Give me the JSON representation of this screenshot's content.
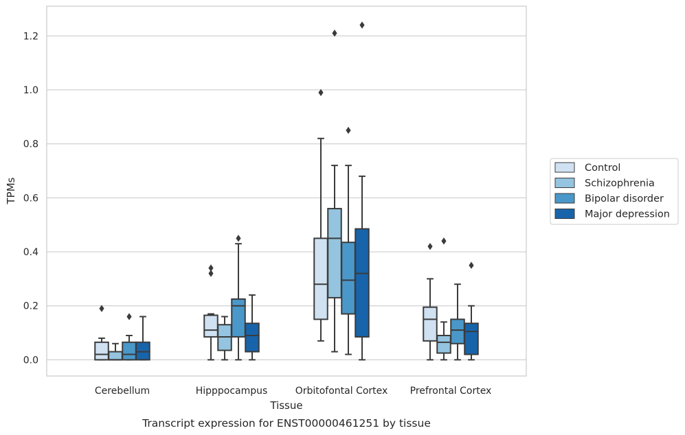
{
  "chart_data": {
    "type": "box",
    "title": "",
    "xlabel": "Tissue",
    "ylabel": "TPMs",
    "caption": "Transcript expression for ENST00000461251 by tissue",
    "ylim": [
      -0.06,
      1.31
    ],
    "yticks": [
      0.0,
      0.2,
      0.4,
      0.6,
      0.8,
      1.0,
      1.2
    ],
    "ytick_labels": [
      "0.0",
      "0.2",
      "0.4",
      "0.6",
      "0.8",
      "1.0",
      "1.2"
    ],
    "grid": true,
    "legend_position": "right",
    "categories": [
      "Cerebellum",
      "Hipppocampus",
      "Orbitofontal Cortex",
      "Prefrontal Cortex"
    ],
    "series": [
      {
        "name": "Control",
        "color": "#d0e1f2",
        "boxes": [
          {
            "whisker_low": 0.0,
            "q1": 0.0,
            "median": 0.02,
            "q3": 0.065,
            "whisker_high": 0.08,
            "outliers": [
              0.19
            ]
          },
          {
            "whisker_low": 0.0,
            "q1": 0.085,
            "median": 0.11,
            "q3": 0.165,
            "whisker_high": 0.17,
            "outliers": [
              0.32,
              0.34
            ]
          },
          {
            "whisker_low": 0.07,
            "q1": 0.15,
            "median": 0.28,
            "q3": 0.45,
            "whisker_high": 0.82,
            "outliers": [
              0.99
            ]
          },
          {
            "whisker_low": 0.0,
            "q1": 0.07,
            "median": 0.15,
            "q3": 0.195,
            "whisker_high": 0.3,
            "outliers": [
              0.42
            ]
          }
        ]
      },
      {
        "name": "Schizophrenia",
        "color": "#94c4df",
        "boxes": [
          {
            "whisker_low": 0.0,
            "q1": 0.0,
            "median": 0.0,
            "q3": 0.03,
            "whisker_high": 0.06,
            "outliers": []
          },
          {
            "whisker_low": 0.0,
            "q1": 0.035,
            "median": 0.085,
            "q3": 0.13,
            "whisker_high": 0.16,
            "outliers": []
          },
          {
            "whisker_low": 0.03,
            "q1": 0.23,
            "median": 0.45,
            "q3": 0.56,
            "whisker_high": 0.72,
            "outliers": [
              1.21
            ]
          },
          {
            "whisker_low": 0.0,
            "q1": 0.025,
            "median": 0.065,
            "q3": 0.09,
            "whisker_high": 0.14,
            "outliers": [
              0.44
            ]
          }
        ]
      },
      {
        "name": "Bipolar disorder",
        "color": "#4a98c9",
        "boxes": [
          {
            "whisker_low": 0.0,
            "q1": 0.0,
            "median": 0.02,
            "q3": 0.065,
            "whisker_high": 0.09,
            "outliers": [
              0.16
            ]
          },
          {
            "whisker_low": 0.0,
            "q1": 0.085,
            "median": 0.2,
            "q3": 0.225,
            "whisker_high": 0.43,
            "outliers": [
              0.45
            ]
          },
          {
            "whisker_low": 0.02,
            "q1": 0.17,
            "median": 0.295,
            "q3": 0.435,
            "whisker_high": 0.72,
            "outliers": [
              0.85
            ]
          },
          {
            "whisker_low": 0.0,
            "q1": 0.06,
            "median": 0.11,
            "q3": 0.15,
            "whisker_high": 0.28,
            "outliers": []
          }
        ]
      },
      {
        "name": "Major depression",
        "color": "#1764ab",
        "boxes": [
          {
            "whisker_low": 0.0,
            "q1": 0.0,
            "median": 0.03,
            "q3": 0.065,
            "whisker_high": 0.16,
            "outliers": []
          },
          {
            "whisker_low": 0.0,
            "q1": 0.03,
            "median": 0.09,
            "q3": 0.135,
            "whisker_high": 0.24,
            "outliers": []
          },
          {
            "whisker_low": 0.0,
            "q1": 0.085,
            "median": 0.32,
            "q3": 0.485,
            "whisker_high": 0.68,
            "outliers": [
              1.24
            ]
          },
          {
            "whisker_low": 0.0,
            "q1": 0.02,
            "median": 0.105,
            "q3": 0.135,
            "whisker_high": 0.2,
            "outliers": [
              0.35
            ]
          }
        ]
      }
    ]
  }
}
